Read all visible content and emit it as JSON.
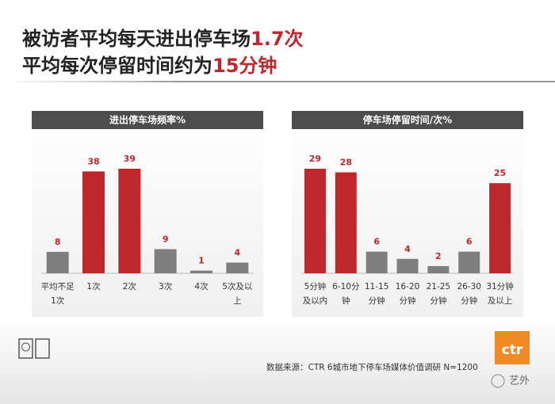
{
  "header": {
    "line1": [
      "被访者平均每天进出停车场",
      "1.7次"
    ],
    "line2": [
      "平均每次停留时间约为",
      "15分钟"
    ]
  },
  "chart_data": [
    {
      "type": "bar",
      "title": "进出停车场频率%",
      "categories": [
        "平均不足\n1次",
        "1次",
        "2次",
        "3次",
        "4次",
        "5次及以\n上"
      ],
      "values": [
        8,
        38,
        39,
        9,
        1,
        4
      ],
      "colors": [
        "#7f7f7f",
        "#c0272d",
        "#c0272d",
        "#7f7f7f",
        "#7f7f7f",
        "#7f7f7f"
      ]
    },
    {
      "type": "bar",
      "title": "停车场停留时间/次%",
      "categories": [
        "5分钟\n及以内",
        "6-10分\n钟",
        "11-15\n分钟",
        "16-20\n分钟",
        "21-25\n分钟",
        "26-30\n分钟",
        "31分钟\n及以上"
      ],
      "values": [
        29,
        28,
        6,
        4,
        2,
        6,
        25
      ],
      "colors": [
        "#c0272d",
        "#c0272d",
        "#7f7f7f",
        "#7f7f7f",
        "#7f7f7f",
        "#7f7f7f",
        "#c0272d"
      ]
    }
  ],
  "source": "数据来源：CTR 6城市地下停车场媒体价值调研 N=1200",
  "logo": "ctr",
  "watermark": "艺外"
}
